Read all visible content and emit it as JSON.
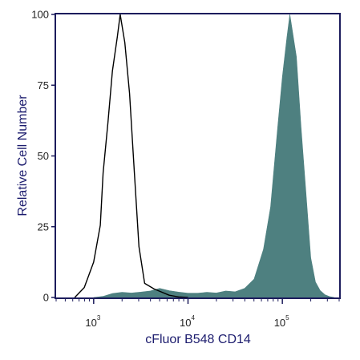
{
  "chart_data": {
    "type": "area",
    "title": "",
    "xlabel": "cFluor B548 CD14",
    "ylabel": "Relative Cell Number",
    "x_scale": "log",
    "xlim": [
      400,
      400000
    ],
    "ylim": [
      0,
      100
    ],
    "y_ticks": [
      {
        "value": 0,
        "label": "0"
      },
      {
        "value": 25,
        "label": "25"
      },
      {
        "value": 50,
        "label": "50"
      },
      {
        "value": 75,
        "label": "75"
      },
      {
        "value": 100,
        "label": "100"
      }
    ],
    "x_ticks": [
      {
        "value": 1000,
        "base": "10",
        "exp": "3"
      },
      {
        "value": 10000,
        "base": "10",
        "exp": "4"
      },
      {
        "value": 100000,
        "base": "10",
        "exp": "5"
      }
    ],
    "grid": false,
    "legend": "none",
    "colors": {
      "axis": "#1c1c5c",
      "axis_title": "#1c1c6e",
      "stained_fill": "#4e8080",
      "control_line": "#000000"
    },
    "series": [
      {
        "style": "filled",
        "points": [
          [
            1000,
            0
          ],
          [
            1260,
            0.4
          ],
          [
            1580,
            1.4
          ],
          [
            2000,
            1.8
          ],
          [
            2510,
            1.6
          ],
          [
            3160,
            1.9
          ],
          [
            3980,
            2.3
          ],
          [
            5010,
            3.2
          ],
          [
            6310,
            2.4
          ],
          [
            7940,
            1.9
          ],
          [
            10000,
            1.5
          ],
          [
            12590,
            1.5
          ],
          [
            15850,
            1.8
          ],
          [
            19950,
            1.6
          ],
          [
            25120,
            2.3
          ],
          [
            31620,
            2.0
          ],
          [
            39810,
            3.2
          ],
          [
            50120,
            6.5
          ],
          [
            63100,
            17
          ],
          [
            75000,
            32
          ],
          [
            89100,
            60
          ],
          [
            100000,
            78
          ],
          [
            112000,
            92
          ],
          [
            120000,
            100
          ],
          [
            141000,
            85
          ],
          [
            158000,
            60
          ],
          [
            178000,
            37
          ],
          [
            200000,
            14
          ],
          [
            224000,
            5.5
          ],
          [
            251000,
            2.5
          ],
          [
            282000,
            1.0
          ],
          [
            316000,
            0.3
          ],
          [
            355000,
            0
          ]
        ]
      },
      {
        "style": "line",
        "points": [
          [
            630,
            0
          ],
          [
            795,
            3.5
          ],
          [
            1000,
            12.5
          ],
          [
            1175,
            25.5
          ],
          [
            1260,
            44
          ],
          [
            1420,
            62
          ],
          [
            1580,
            80
          ],
          [
            1780,
            92
          ],
          [
            1910,
            100
          ],
          [
            2140,
            90
          ],
          [
            2400,
            72
          ],
          [
            2690,
            45
          ],
          [
            3020,
            18
          ],
          [
            3470,
            5
          ],
          [
            4370,
            3
          ],
          [
            6310,
            0.8
          ],
          [
            7940,
            0.2
          ],
          [
            10000,
            0
          ]
        ]
      }
    ]
  }
}
